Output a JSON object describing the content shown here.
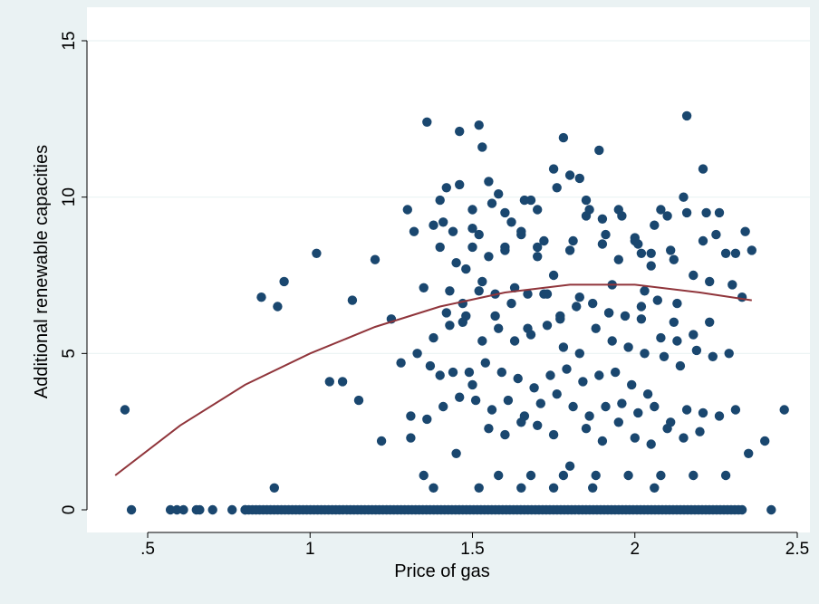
{
  "chart_data": {
    "type": "scatter",
    "title": "",
    "xlabel": "Price of gas",
    "ylabel": "Additional renewable capacities",
    "xlim": [
      0.38,
      2.5
    ],
    "ylim": [
      0,
      15
    ],
    "xticks": [
      0.5,
      1,
      1.5,
      2,
      2.5
    ],
    "xtick_labels": [
      ".5",
      "1",
      "1.5",
      "2",
      "2.5"
    ],
    "yticks": [
      0,
      5,
      10,
      15
    ],
    "ytick_labels": [
      "0",
      "5",
      "10",
      "15"
    ],
    "grid": "horizontal",
    "legend": "none",
    "colors": {
      "background": "#eaf2f3",
      "plot_bg": "#ffffff",
      "marker": "#1a476f",
      "fit": "#90353b",
      "grid": "#eaf2f3"
    },
    "fit_line": {
      "type": "quadratic",
      "x": [
        0.4,
        0.6,
        0.8,
        1.0,
        1.2,
        1.4,
        1.6,
        1.8,
        2.0,
        2.2,
        2.36
      ],
      "y": [
        1.1,
        2.7,
        4.0,
        5.0,
        5.85,
        6.5,
        6.95,
        7.2,
        7.2,
        6.95,
        6.7
      ]
    },
    "series": [
      {
        "x": [
          0.43,
          1.36,
          1.52,
          1.78,
          2.16,
          1.46,
          1.53,
          1.89,
          1.83,
          2.21,
          0.92,
          1.02,
          1.2,
          1.1,
          1.13,
          1.25,
          1.3,
          1.32,
          1.35,
          1.38,
          1.4,
          1.42,
          1.44,
          1.46,
          1.48,
          1.5,
          1.52,
          1.55,
          1.58,
          1.6,
          1.62,
          1.65,
          1.68,
          1.7,
          1.72,
          1.75,
          1.8,
          1.85,
          1.9,
          1.95,
          2.0,
          2.02,
          2.05,
          2.08,
          2.1,
          2.12,
          2.15,
          2.18,
          2.22,
          2.25,
          2.28,
          2.3,
          2.34,
          2.36,
          1.4,
          1.45,
          1.5,
          1.55,
          1.6,
          1.65,
          1.7,
          1.75,
          1.8,
          1.85,
          1.9,
          1.95,
          2.0,
          2.05,
          1.42,
          1.47,
          1.52,
          1.57,
          1.62,
          1.67,
          1.72,
          1.77,
          1.82,
          1.87,
          1.92,
          1.97,
          2.02,
          2.07,
          1.33,
          1.38,
          1.43,
          1.48,
          1.53,
          1.58,
          1.63,
          1.68,
          1.73,
          1.78,
          1.83,
          1.88,
          1.93,
          1.98,
          2.03,
          2.08,
          2.13,
          2.18,
          2.23,
          1.44,
          1.49,
          1.54,
          1.59,
          1.64,
          1.69,
          1.74,
          1.79,
          1.84,
          1.89,
          1.94,
          1.99,
          2.04,
          2.09,
          2.14,
          2.19,
          2.24,
          2.29,
          1.31,
          1.36,
          1.41,
          1.46,
          1.51,
          1.56,
          1.61,
          1.66,
          1.71,
          1.76,
          1.81,
          1.86,
          1.91,
          1.96,
          2.01,
          2.06,
          2.11,
          2.16,
          2.21,
          2.26,
          2.31,
          0.85,
          0.9,
          1.06,
          1.15,
          1.22,
          1.28,
          1.31,
          1.37,
          1.4,
          1.45,
          1.5,
          1.55,
          1.6,
          1.65,
          1.7,
          1.75,
          1.8,
          1.85,
          1.9,
          1.95,
          2.0,
          2.05,
          2.1,
          2.15,
          2.2,
          2.35,
          2.4,
          2.46,
          0.89,
          1.38,
          1.52,
          1.65,
          1.75,
          1.87,
          2.06,
          1.35,
          1.58,
          1.68,
          1.78,
          1.88,
          1.98,
          2.08,
          2.18,
          2.28,
          1.43,
          1.53,
          1.63,
          1.73,
          1.83,
          1.93,
          2.03,
          2.13,
          2.23,
          2.33,
          1.47,
          1.57,
          1.67,
          1.77,
          1.92,
          2.02,
          2.12,
          1.5,
          1.6,
          1.7,
          1.81,
          1.91,
          2.01,
          2.11,
          2.21,
          2.31,
          1.41,
          1.56,
          1.66,
          1.76,
          1.86,
          1.96,
          2.06,
          2.16,
          2.26,
          0.45,
          0.57,
          0.59,
          0.61,
          0.65,
          0.66,
          0.7,
          0.76,
          0.8,
          2.42
        ],
        "y": [
          3.2,
          12.4,
          12.3,
          11.9,
          12.6,
          12.1,
          11.6,
          11.5,
          10.6,
          10.9,
          7.3,
          8.2,
          8.0,
          4.1,
          6.7,
          6.1,
          9.6,
          8.9,
          7.1,
          9.1,
          9.9,
          10.3,
          8.9,
          10.4,
          7.7,
          9.6,
          8.8,
          10.5,
          10.1,
          9.5,
          9.2,
          8.9,
          9.9,
          9.6,
          8.6,
          10.9,
          10.7,
          9.9,
          9.3,
          9.6,
          8.7,
          8.2,
          7.8,
          9.6,
          9.4,
          8.0,
          10.0,
          7.5,
          9.5,
          8.8,
          8.2,
          7.2,
          8.9,
          8.3,
          8.4,
          7.9,
          9.0,
          8.1,
          8.4,
          8.8,
          8.4,
          7.5,
          8.3,
          9.4,
          8.5,
          8.0,
          8.6,
          8.2,
          6.3,
          6.6,
          7.0,
          6.9,
          6.6,
          6.9,
          6.9,
          6.2,
          6.5,
          6.6,
          6.3,
          6.2,
          6.5,
          6.7,
          5.0,
          5.5,
          5.9,
          6.2,
          5.4,
          5.8,
          5.4,
          5.6,
          5.9,
          5.2,
          5.0,
          5.8,
          5.4,
          5.2,
          5.0,
          5.5,
          5.4,
          5.6,
          6.0,
          4.4,
          4.4,
          4.7,
          4.4,
          4.2,
          3.9,
          4.3,
          4.5,
          4.1,
          4.3,
          4.4,
          4.0,
          3.7,
          4.9,
          4.6,
          5.1,
          4.9,
          5.0,
          3.0,
          2.9,
          3.3,
          3.6,
          3.5,
          3.2,
          3.5,
          3.0,
          3.4,
          3.7,
          3.3,
          3.0,
          3.3,
          3.4,
          3.1,
          3.3,
          2.8,
          3.2,
          3.1,
          3.0,
          3.2,
          6.8,
          6.5,
          4.1,
          3.5,
          2.2,
          4.7,
          2.3,
          4.6,
          4.3,
          1.8,
          4.0,
          2.6,
          2.4,
          2.8,
          2.7,
          2.4,
          1.4,
          2.6,
          2.2,
          2.8,
          2.3,
          2.1,
          2.6,
          2.3,
          2.5,
          1.8,
          2.2,
          3.2,
          0.7,
          0.7,
          0.7,
          0.7,
          0.7,
          0.7,
          0.7,
          1.1,
          1.1,
          1.1,
          1.1,
          1.1,
          1.1,
          1.1,
          1.1,
          1.1,
          7.0,
          7.3,
          7.1,
          6.9,
          6.8,
          7.2,
          7.0,
          6.6,
          7.3,
          6.8,
          6.0,
          6.2,
          5.8,
          6.1,
          6.3,
          6.1,
          6.0,
          8.4,
          8.3,
          8.1,
          8.6,
          8.8,
          8.5,
          8.3,
          8.6,
          8.2,
          9.2,
          9.8,
          9.9,
          10.3,
          9.6,
          9.4,
          9.1,
          9.5,
          9.5,
          0,
          0,
          0,
          0,
          0,
          0,
          0,
          0,
          0,
          0
        ]
      }
    ],
    "zero_band": {
      "x_start": 0.8,
      "x_end": 2.33,
      "y": 0
    }
  }
}
